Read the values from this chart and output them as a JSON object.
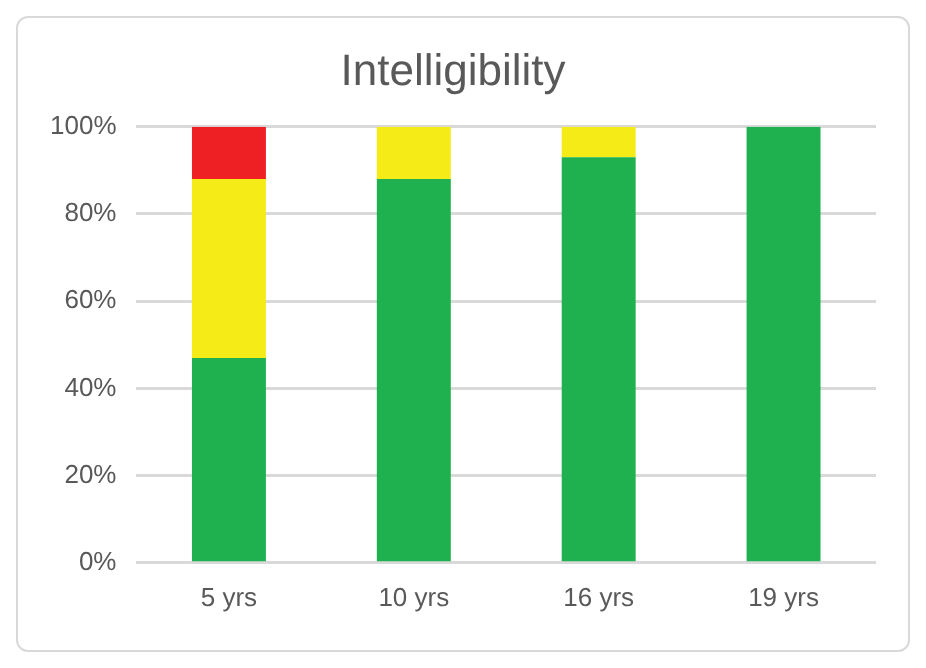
{
  "chart_data": {
    "type": "bar",
    "title": "Intelligibility",
    "categories": [
      "5 yrs",
      "10 yrs",
      "16 yrs",
      "19 yrs"
    ],
    "stacked": true,
    "series": [
      {
        "color": "#1fb050",
        "values": [
          47,
          88,
          93,
          100
        ]
      },
      {
        "color": "#f5ec17",
        "values": [
          41,
          12,
          7,
          0
        ]
      },
      {
        "color": "#ee2024",
        "values": [
          12,
          0,
          0,
          0
        ]
      }
    ],
    "ylim": [
      0,
      100
    ],
    "yticks": [
      {
        "value": 0,
        "label": "0%"
      },
      {
        "value": 20,
        "label": "20%"
      },
      {
        "value": 40,
        "label": "40%"
      },
      {
        "value": 60,
        "label": "60%"
      },
      {
        "value": 80,
        "label": "80%"
      },
      {
        "value": 100,
        "label": "100%"
      }
    ],
    "grid": "y",
    "legend": false
  }
}
